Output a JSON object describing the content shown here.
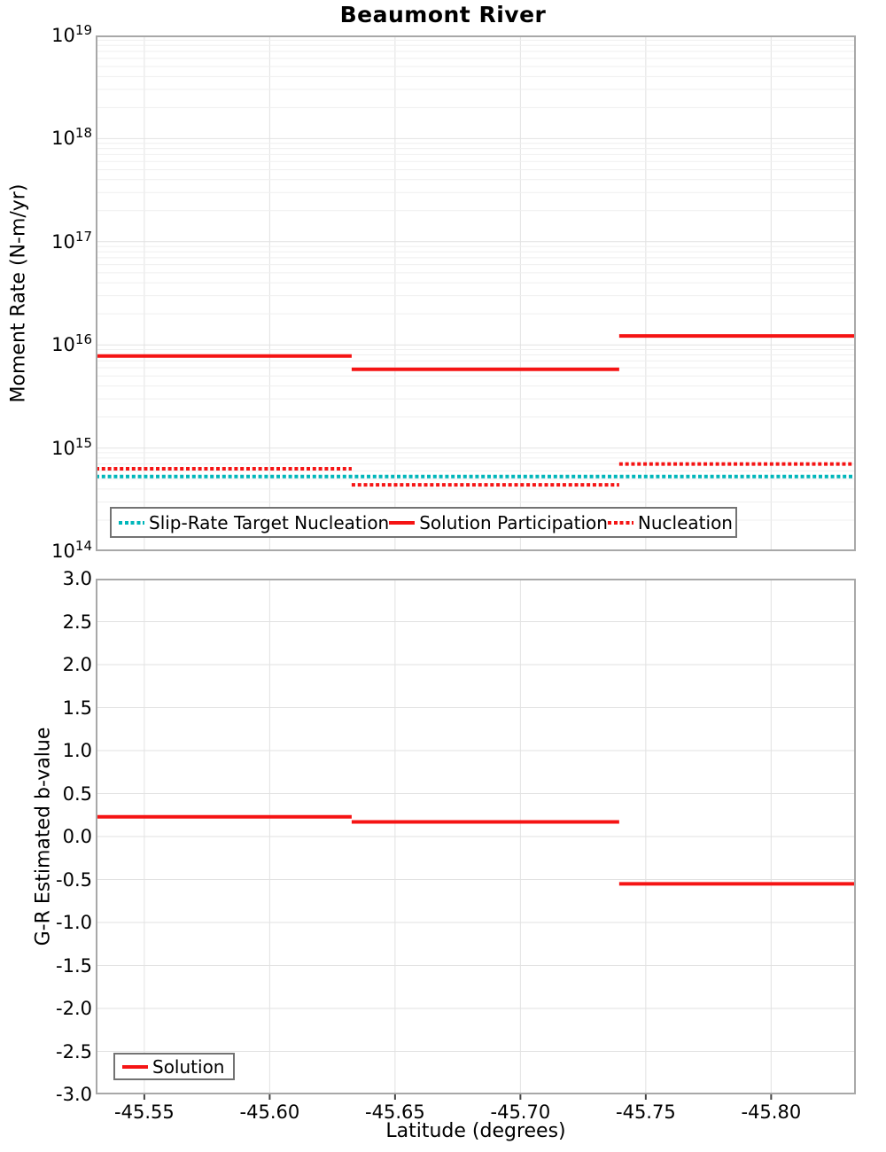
{
  "title": "Beaumont River",
  "colors": {
    "red": "#f51414",
    "teal": "#00b6ba",
    "grid_major": "#e2e2e2",
    "grid_minor": "#efefef",
    "axis_border": "#a8a8a8",
    "legend_border": "#737373"
  },
  "xaxis": {
    "label": "Latitude (degrees)",
    "range": [
      -45.5306,
      -45.8338
    ],
    "tick_values": [
      -45.55,
      -45.6,
      -45.65,
      -45.7,
      -45.75,
      -45.8
    ],
    "tick_labels": [
      "-45.55",
      "-45.60",
      "-45.65",
      "-45.70",
      "-45.75",
      "-45.80"
    ]
  },
  "section_edges": [
    -45.5306,
    -45.6327,
    -45.7394,
    -45.8338
  ],
  "chart_data": [
    {
      "type": "line",
      "subplot": "top",
      "title": "Beaumont River",
      "ylabel": "Moment Rate (N-m/yr)",
      "xlabel": "",
      "yscale": "log",
      "ylim": [
        100000000000000.0,
        1e+19
      ],
      "ytick_exponents": [
        19,
        18,
        17,
        16,
        15,
        14
      ],
      "xlim": [
        -45.5306,
        -45.8338
      ],
      "grid": true,
      "legend_position": "inside-bottom",
      "x_step_edges": [
        -45.5306,
        -45.6327,
        -45.7394,
        -45.8338
      ],
      "series": [
        {
          "name": "Slip-Rate Target Nucleation",
          "style": "dotted",
          "color": "teal",
          "values": [
            530000000000000.0,
            530000000000000.0,
            530000000000000.0
          ]
        },
        {
          "name": "Solution Participation",
          "style": "solid",
          "color": "red",
          "values": [
            7800000000000000.0,
            5800000000000000.0,
            1.22e+16
          ]
        },
        {
          "name": "Nucleation",
          "style": "dotted",
          "color": "red",
          "values": [
            630000000000000.0,
            440000000000000.0,
            700000000000000.0
          ]
        }
      ]
    },
    {
      "type": "line",
      "subplot": "bottom",
      "ylabel": "G-R Estimated b-value",
      "xlabel": "Latitude (degrees)",
      "yscale": "linear",
      "ylim": [
        -3.0,
        3.0
      ],
      "ytick_values": [
        3.0,
        2.5,
        2.0,
        1.5,
        1.0,
        0.5,
        0.0,
        -0.5,
        -1.0,
        -1.5,
        -2.0,
        -2.5,
        -3.0
      ],
      "xlim": [
        -45.5306,
        -45.8338
      ],
      "grid": true,
      "legend_position": "inside-bottom-left",
      "x_step_edges": [
        -45.5306,
        -45.6327,
        -45.7394,
        -45.8338
      ],
      "series": [
        {
          "name": "Solution",
          "style": "solid",
          "color": "red",
          "values": [
            0.23,
            0.17,
            -0.55
          ]
        }
      ]
    }
  ]
}
